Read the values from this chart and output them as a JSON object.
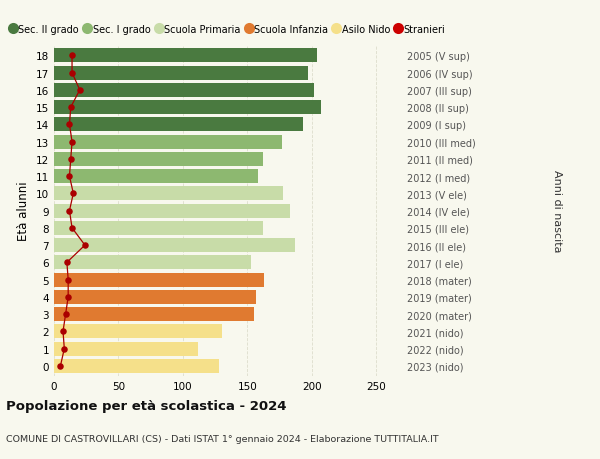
{
  "ages": [
    0,
    1,
    2,
    3,
    4,
    5,
    6,
    7,
    8,
    9,
    10,
    11,
    12,
    13,
    14,
    15,
    16,
    17,
    18
  ],
  "bar_values": [
    128,
    112,
    130,
    155,
    157,
    163,
    153,
    187,
    162,
    183,
    178,
    158,
    162,
    177,
    193,
    207,
    202,
    197,
    204
  ],
  "stranieri_values": [
    5,
    8,
    7,
    9,
    11,
    11,
    10,
    24,
    14,
    12,
    15,
    12,
    13,
    14,
    12,
    13,
    20,
    14,
    14
  ],
  "bar_colors": [
    "#f5e08a",
    "#f5e08a",
    "#f5e08a",
    "#e07a30",
    "#e07a30",
    "#e07a30",
    "#c8dca8",
    "#c8dca8",
    "#c8dca8",
    "#c8dca8",
    "#c8dca8",
    "#8db870",
    "#8db870",
    "#8db870",
    "#4a7a40",
    "#4a7a40",
    "#4a7a40",
    "#4a7a40",
    "#4a7a40"
  ],
  "right_labels": [
    "2023 (nido)",
    "2022 (nido)",
    "2021 (nido)",
    "2020 (mater)",
    "2019 (mater)",
    "2018 (mater)",
    "2017 (I ele)",
    "2016 (II ele)",
    "2015 (III ele)",
    "2014 (IV ele)",
    "2013 (V ele)",
    "2012 (I med)",
    "2011 (II med)",
    "2010 (III med)",
    "2009 (I sup)",
    "2008 (II sup)",
    "2007 (III sup)",
    "2006 (IV sup)",
    "2005 (V sup)"
  ],
  "legend_labels": [
    "Sec. II grado",
    "Sec. I grado",
    "Scuola Primaria",
    "Scuola Infanzia",
    "Asilo Nido",
    "Stranieri"
  ],
  "legend_colors": [
    "#4a7a40",
    "#8db870",
    "#c8dca8",
    "#e07a30",
    "#f5e08a",
    "#cc0000"
  ],
  "ylabel_left": "Età alunni",
  "ylabel_right": "Anni di nascita",
  "title": "Popolazione per età scolastica - 2024",
  "subtitle": "COMUNE DI CASTROVILLARI (CS) - Dati ISTAT 1° gennaio 2024 - Elaborazione TUTTITALIA.IT",
  "xlim": [
    0,
    270
  ],
  "background_color": "#f8f8ee",
  "grid_color": "#ddddcc",
  "bar_height": 0.82,
  "stranieri_color": "#aa0000"
}
